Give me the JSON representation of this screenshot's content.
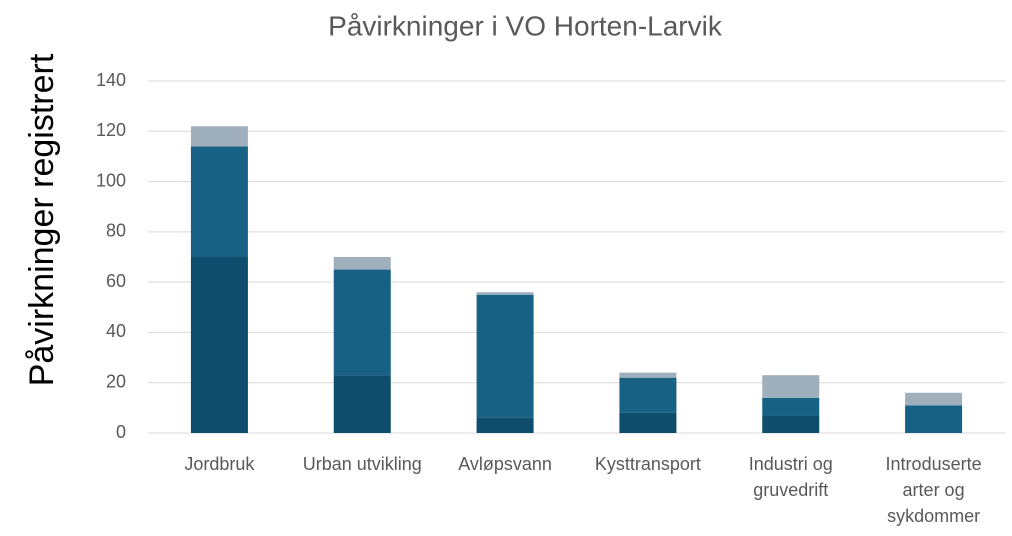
{
  "chart_data": {
    "type": "stacked_bar",
    "title": "Påvirkninger i VO Horten-Larvik",
    "y_label": "Påvirkninger registrert",
    "categories": [
      "Jordbruk",
      "Urban utvikling",
      "Avløpsvann",
      "Kysttransport",
      "Industri og gruvedrift",
      "Introduserte arter og sykdommer"
    ],
    "series": [
      {
        "color": "#0e4d6b",
        "values": [
          70,
          23,
          6,
          8,
          7,
          0
        ]
      },
      {
        "color": "#176185",
        "values": [
          44,
          42,
          49,
          14,
          7,
          11
        ]
      },
      {
        "color": "#a0afbc",
        "values": [
          8,
          5,
          1,
          2,
          9,
          5
        ]
      }
    ],
    "ylim": [
      0,
      140
    ],
    "yticks": [
      0,
      20,
      40,
      60,
      80,
      100,
      120,
      140
    ],
    "grid": true
  }
}
